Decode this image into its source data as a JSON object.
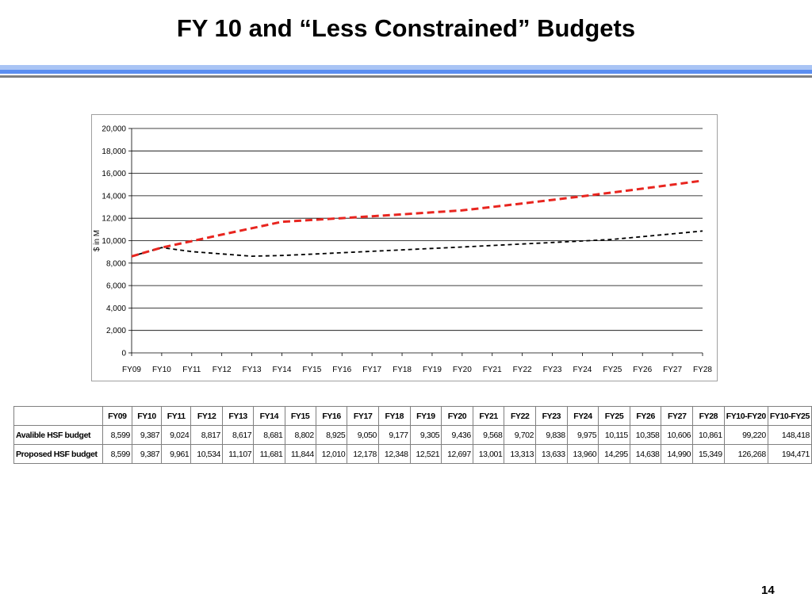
{
  "slide": {
    "title": "FY 10 and “Less Constrained” Budgets",
    "page_number": "14"
  },
  "colors": {
    "band_light": "#a9c4f5",
    "band_mid": "#5b8ef0",
    "band_dark": "#7f7f7f",
    "available_series": "#000000",
    "proposed_series": "#e8251f",
    "gridline": "#000000"
  },
  "chart_data": {
    "type": "line",
    "title": "",
    "xlabel": "",
    "ylabel": "$ in M",
    "ylim": [
      0,
      20000
    ],
    "yticks": [
      0,
      2000,
      4000,
      6000,
      8000,
      10000,
      12000,
      14000,
      16000,
      18000,
      20000
    ],
    "ytick_labels": [
      "0",
      "2,000",
      "4,000",
      "6,000",
      "8,000",
      "10,000",
      "12,000",
      "14,000",
      "16,000",
      "18,000",
      "20,000"
    ],
    "grid": true,
    "legend": "none",
    "categories": [
      "FY09",
      "FY10",
      "FY11",
      "FY12",
      "FY13",
      "FY14",
      "FY15",
      "FY16",
      "FY17",
      "FY18",
      "FY19",
      "FY20",
      "FY21",
      "FY22",
      "FY23",
      "FY24",
      "FY25",
      "FY26",
      "FY27",
      "FY28"
    ],
    "series": [
      {
        "name": "Avalible HSF budget",
        "style": "dashed",
        "color": "#000000",
        "values": [
          8599,
          9387,
          9024,
          8817,
          8617,
          8681,
          8802,
          8925,
          9050,
          9177,
          9305,
          9436,
          9568,
          9702,
          9838,
          9975,
          10115,
          10358,
          10606,
          10861
        ]
      },
      {
        "name": "Proposed HSF budget",
        "style": "dashed",
        "color": "#e8251f",
        "values": [
          8599,
          9387,
          9961,
          10534,
          11107,
          11681,
          11844,
          12010,
          12178,
          12348,
          12521,
          12697,
          13001,
          13313,
          13633,
          13960,
          14295,
          14638,
          14990,
          15349
        ]
      }
    ]
  },
  "table": {
    "headers": [
      "",
      "FY09",
      "FY10",
      "FY11",
      "FY12",
      "FY13",
      "FY14",
      "FY15",
      "FY16",
      "FY17",
      "FY18",
      "FY19",
      "FY20",
      "FY21",
      "FY22",
      "FY23",
      "FY24",
      "FY25",
      "FY26",
      "FY27",
      "FY28",
      "FY10-FY20",
      "FY10-FY25"
    ],
    "rows": [
      {
        "label": "Avalible HSF budget",
        "cells": [
          "8,599",
          "9,387",
          "9,024",
          "8,817",
          "8,617",
          "8,681",
          "8,802",
          "8,925",
          "9,050",
          "9,177",
          "9,305",
          "9,436",
          "9,568",
          "9,702",
          "9,838",
          "9,975",
          "10,115",
          "10,358",
          "10,606",
          "10,861",
          "99,220",
          "148,418"
        ]
      },
      {
        "label": "Proposed HSF budget",
        "cells": [
          "8,599",
          "9,387",
          "9,961",
          "10,534",
          "11,107",
          "11,681",
          "11,844",
          "12,010",
          "12,178",
          "12,348",
          "12,521",
          "12,697",
          "13,001",
          "13,313",
          "13,633",
          "13,960",
          "14,295",
          "14,638",
          "14,990",
          "15,349",
          "126,268",
          "194,471"
        ]
      }
    ]
  }
}
